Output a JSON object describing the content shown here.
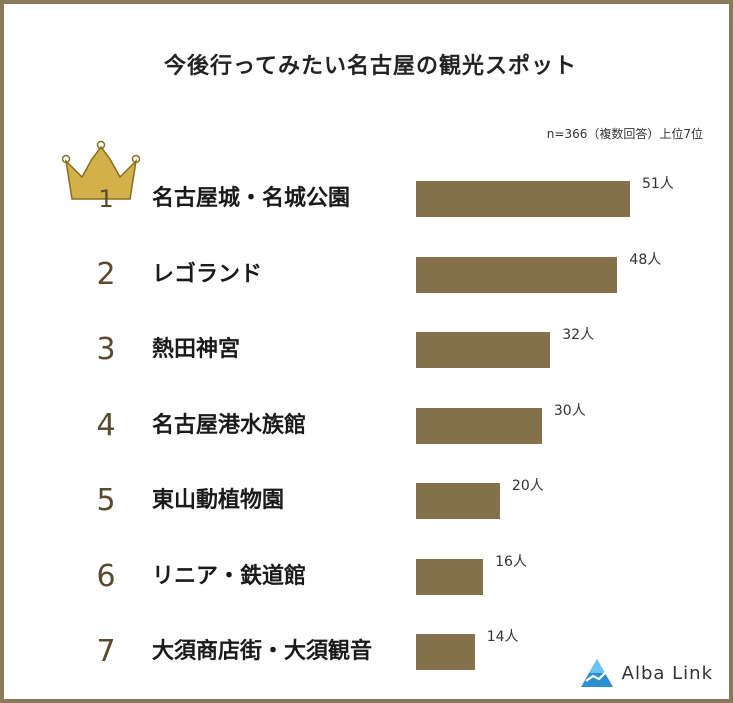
{
  "title": "今後行ってみたい名古屋の観光スポット",
  "note": "n=366（複数回答）上位7位",
  "logo_text": "Alba Link",
  "colors": {
    "bar": "#85704c",
    "frame": "#8a7a5a",
    "crown": "#d4b04a"
  },
  "chart_data": {
    "type": "bar",
    "orientation": "horizontal",
    "title": "今後行ってみたい名古屋の観光スポット",
    "ranks": [
      "1",
      "2",
      "3",
      "4",
      "5",
      "6",
      "7"
    ],
    "categories": [
      "名古屋城・名城公園",
      "レゴランド",
      "熱田神宮",
      "名古屋港水族館",
      "東山動植物園",
      "リニア・鉄道館",
      "大須商店街・大須観音"
    ],
    "values": [
      51,
      48,
      32,
      30,
      20,
      16,
      14
    ],
    "value_labels": [
      "51人",
      "48人",
      "32人",
      "30人",
      "20人",
      "16人",
      "14人"
    ],
    "xlim": [
      0,
      51
    ],
    "grid": false,
    "legend": "none"
  }
}
